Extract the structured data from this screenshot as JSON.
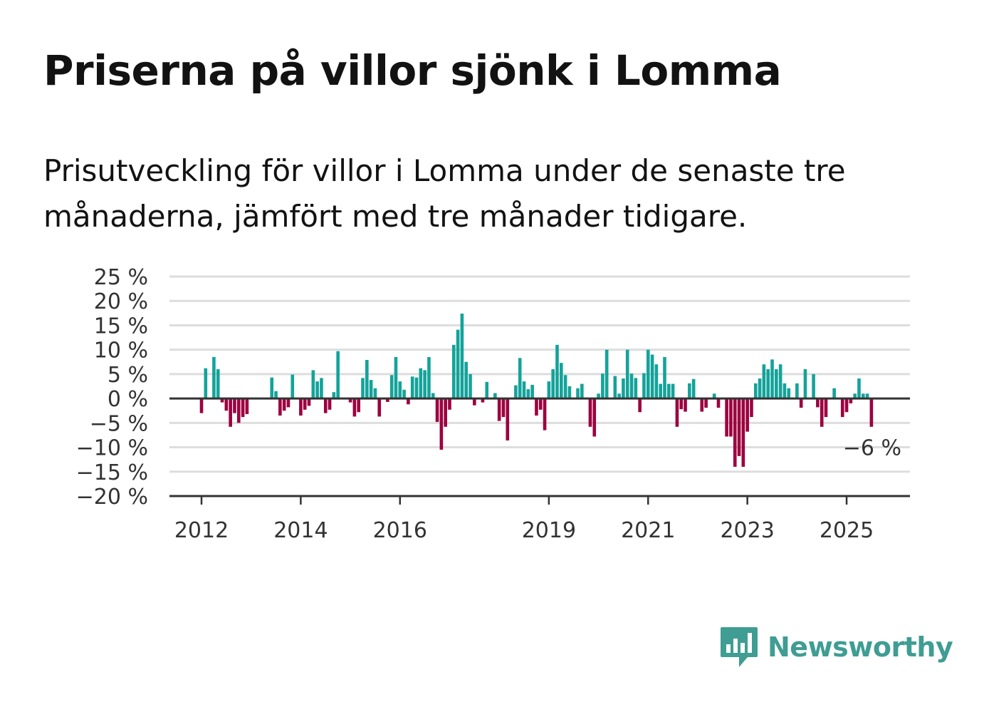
{
  "title": "Priserna på villor sjönk i Lomma",
  "subtitle": "Prisutveckling för villor i Lomma under de senaste tre månaderna, jämfört med tre månader tidigare.",
  "brand": {
    "name": "Newsworthy",
    "color": "#3f9d93",
    "icon": "newsworthy-logo-icon"
  },
  "colors": {
    "positive": "#14a39a",
    "negative": "#9c0040",
    "grid": "#dddddd",
    "axis": "#333333"
  },
  "annotation": {
    "text": "−6 %"
  },
  "chart_data": {
    "type": "bar",
    "ylim": [
      -20,
      25
    ],
    "yticks": [
      25,
      20,
      15,
      10,
      5,
      0,
      -5,
      -10,
      -15,
      -20
    ],
    "ytick_labels": [
      "25 %",
      "20 %",
      "15 %",
      "10 %",
      "5 %",
      "0 %",
      "−5 %",
      "−10 %",
      "−15 %",
      "−20 %"
    ],
    "xtick_labels": [
      "2012",
      "2014",
      "2016",
      "2019",
      "2021",
      "2023",
      "2025"
    ],
    "xtick_positions": [
      "2012-01",
      "2014-01",
      "2016-01",
      "2019-01",
      "2021-01",
      "2023-01",
      "2025-01"
    ],
    "grid": true,
    "x_start": "2012-01",
    "x_end": "2025-07",
    "x": [
      "2012-01",
      "2012-02",
      "2012-03",
      "2012-04",
      "2012-05",
      "2012-06",
      "2012-07",
      "2012-08",
      "2012-09",
      "2012-10",
      "2012-11",
      "2012-12",
      "2013-01",
      "2013-02",
      "2013-03",
      "2013-04",
      "2013-05",
      "2013-06",
      "2013-07",
      "2013-08",
      "2013-09",
      "2013-10",
      "2013-11",
      "2013-12",
      "2014-01",
      "2014-02",
      "2014-03",
      "2014-04",
      "2014-05",
      "2014-06",
      "2014-07",
      "2014-08",
      "2014-09",
      "2014-10",
      "2014-11",
      "2014-12",
      "2015-01",
      "2015-02",
      "2015-03",
      "2015-04",
      "2015-05",
      "2015-06",
      "2015-07",
      "2015-08",
      "2015-09",
      "2015-10",
      "2015-11",
      "2015-12",
      "2016-01",
      "2016-02",
      "2016-03",
      "2016-04",
      "2016-05",
      "2016-06",
      "2016-07",
      "2016-08",
      "2016-09",
      "2016-10",
      "2016-11",
      "2016-12",
      "2017-01",
      "2017-02",
      "2017-03",
      "2017-04",
      "2017-05",
      "2017-06",
      "2017-07",
      "2017-08",
      "2017-09",
      "2017-10",
      "2017-11",
      "2017-12",
      "2018-01",
      "2018-02",
      "2018-03",
      "2018-04",
      "2018-05",
      "2018-06",
      "2018-07",
      "2018-08",
      "2018-09",
      "2018-10",
      "2018-11",
      "2018-12",
      "2019-01",
      "2019-02",
      "2019-03",
      "2019-04",
      "2019-05",
      "2019-06",
      "2019-07",
      "2019-08",
      "2019-09",
      "2019-10",
      "2019-11",
      "2019-12",
      "2020-01",
      "2020-02",
      "2020-03",
      "2020-04",
      "2020-05",
      "2020-06",
      "2020-07",
      "2020-08",
      "2020-09",
      "2020-10",
      "2020-11",
      "2020-12",
      "2021-01",
      "2021-02",
      "2021-03",
      "2021-04",
      "2021-05",
      "2021-06",
      "2021-07",
      "2021-08",
      "2021-09",
      "2021-10",
      "2021-11",
      "2021-12",
      "2022-01",
      "2022-02",
      "2022-03",
      "2022-04",
      "2022-05",
      "2022-06",
      "2022-07",
      "2022-08",
      "2022-09",
      "2022-10",
      "2022-11",
      "2022-12",
      "2023-01",
      "2023-02",
      "2023-03",
      "2023-04",
      "2023-05",
      "2023-06",
      "2023-07",
      "2023-08",
      "2023-09",
      "2023-10",
      "2023-11",
      "2023-12",
      "2024-01",
      "2024-02",
      "2024-03",
      "2024-04",
      "2024-05",
      "2024-06",
      "2024-07",
      "2024-08",
      "2024-09",
      "2024-10",
      "2024-11",
      "2024-12",
      "2025-01",
      "2025-02",
      "2025-03",
      "2025-04",
      "2025-05",
      "2025-06",
      "2025-07"
    ],
    "values": [
      -3.0,
      6.2,
      null,
      8.5,
      6.0,
      -0.8,
      -2.5,
      -5.8,
      -3.0,
      -5.0,
      -3.8,
      -3.2,
      null,
      null,
      null,
      null,
      null,
      4.3,
      1.5,
      -3.5,
      -2.5,
      -1.8,
      4.9,
      null,
      -3.5,
      -2.3,
      -1.5,
      5.8,
      3.5,
      4.2,
      -3.0,
      -2.3,
      1.3,
      9.7,
      null,
      null,
      -0.8,
      -3.7,
      -2.8,
      4.2,
      7.9,
      3.8,
      2.1,
      -3.7,
      null,
      -0.7,
      4.8,
      8.5,
      3.5,
      1.8,
      -1.2,
      4.5,
      4.3,
      6.2,
      5.8,
      8.5,
      1.1,
      -4.8,
      -10.5,
      -5.8,
      -2.3,
      11.0,
      14.1,
      17.4,
      7.5,
      5.0,
      -1.4,
      null,
      -0.8,
      3.4,
      null,
      1.1,
      -4.6,
      -3.8,
      -8.6,
      null,
      2.7,
      8.3,
      3.5,
      1.9,
      2.8,
      -3.5,
      -2.3,
      -6.5,
      3.5,
      6.0,
      11.0,
      7.3,
      4.8,
      2.5,
      null,
      2.1,
      3.0,
      null,
      -5.8,
      -7.8,
      1.0,
      5.1,
      10.0,
      null,
      4.6,
      1.0,
      4.1,
      10.0,
      5.1,
      4.2,
      -2.8,
      5.2,
      10.0,
      9.0,
      7.0,
      3.0,
      8.5,
      3.0,
      3.0,
      -5.8,
      -2.2,
      -2.7,
      3.1,
      4.0,
      null,
      -2.7,
      -1.9,
      null,
      1.0,
      -1.9,
      null,
      -7.8,
      -7.8,
      -14.0,
      -11.8,
      -14.0,
      -6.8,
      -3.8,
      3.1,
      4.1,
      7.0,
      6.0,
      8.0,
      6.0,
      7.0,
      3.1,
      2.1,
      null,
      3.1,
      -1.9,
      6.0,
      null,
      5.0,
      -1.8,
      -5.8,
      -3.8,
      null,
      2.1,
      null,
      -3.8,
      -2.8,
      -1.0,
      1.0,
      4.1,
      1.0,
      1.0,
      -5.8
    ]
  }
}
